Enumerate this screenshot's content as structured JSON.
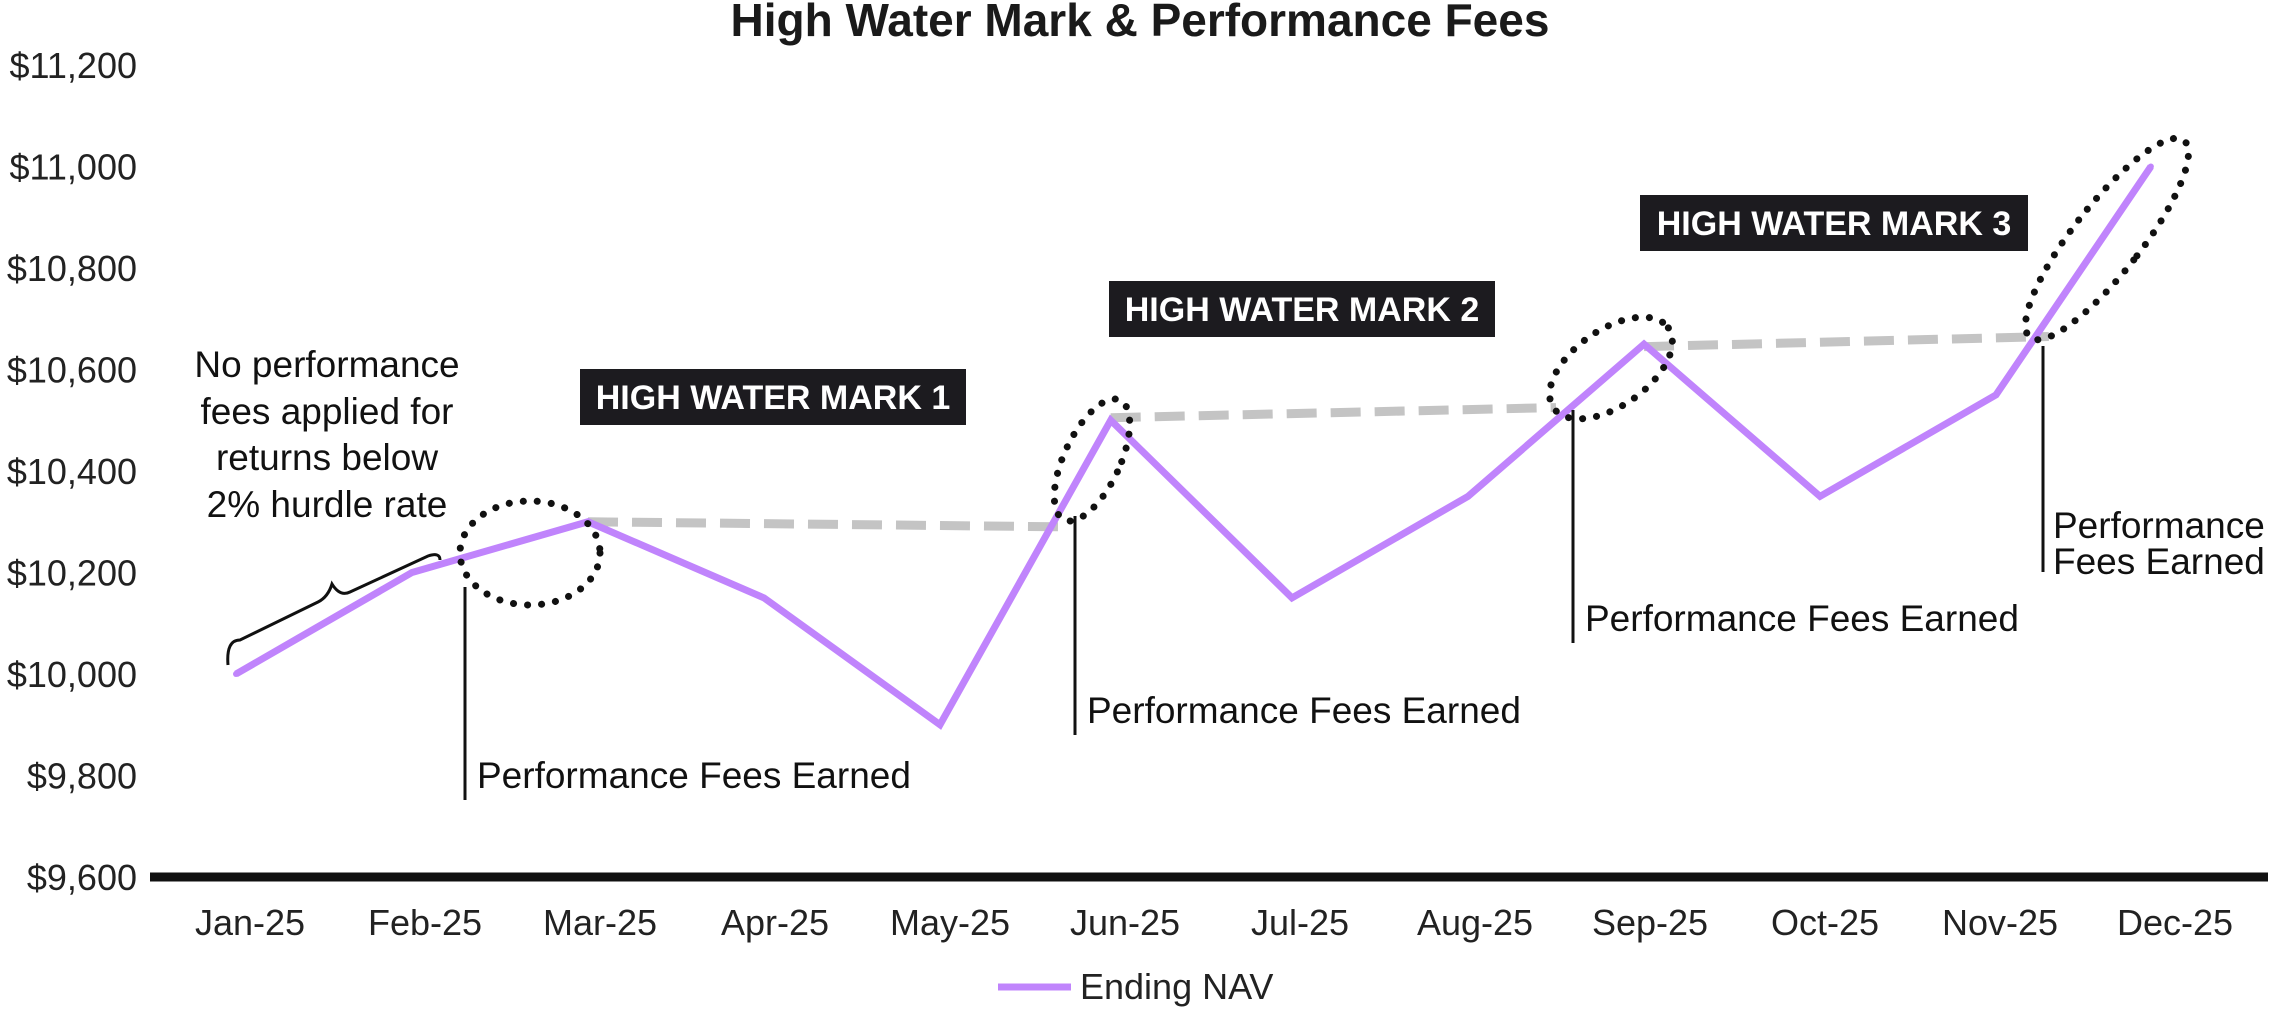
{
  "chart_data": {
    "type": "line",
    "title": "High Water Mark & Performance Fees",
    "categories": [
      "Jan-25",
      "Feb-25",
      "Mar-25",
      "Apr-25",
      "May-25",
      "Jun-25",
      "Jul-25",
      "Aug-25",
      "Sep-25",
      "Oct-25",
      "Nov-25",
      "Dec-25"
    ],
    "x_positions": [
      0,
      1,
      2,
      3,
      4,
      4.97,
      6,
      7,
      8,
      9,
      10,
      10.88
    ],
    "series": [
      {
        "name": "Ending NAV",
        "values": [
          10000,
          10200,
          10300,
          10150,
          9900,
          10500,
          10150,
          10350,
          10650,
          10350,
          10550,
          11000
        ],
        "color": "#c084fc"
      }
    ],
    "ylim": [
      9600,
      11200
    ],
    "yticks": [
      9600,
      9800,
      10000,
      10200,
      10400,
      10600,
      10800,
      11000,
      11200
    ],
    "ytick_labels": [
      "$9,600",
      "$9,800",
      "$10,000",
      "$10,200",
      "$10,400",
      "$10,600",
      "$10,800",
      "$11,000",
      "$11,200"
    ],
    "xlabel": "",
    "ylabel": "",
    "legend": {
      "position": "bottom-center",
      "entries": [
        "Ending NAV"
      ]
    },
    "high_water_marks": [
      {
        "label": "HIGH WATER MARK 1",
        "from_x": 2,
        "to_x": 4.7,
        "from_y": 10300,
        "to_y": 10290
      },
      {
        "label": "HIGH WATER MARK 2",
        "from_x": 4.97,
        "to_x": 7.5,
        "from_y": 10505,
        "to_y": 10525
      },
      {
        "label": "HIGH WATER MARK 3",
        "from_x": 8,
        "to_x": 10.3,
        "from_y": 10645,
        "to_y": 10665
      }
    ],
    "fee_annotations": [
      {
        "text": "Performance Fees Earned",
        "x": 1.25,
        "y": 10190
      },
      {
        "text": "Performance Fees Earned",
        "x": 4.65,
        "y": 10310
      },
      {
        "text": "Performance Fees Earned",
        "x": 7.5,
        "y": 10525
      },
      {
        "text": "Performance Fees Earned",
        "x": 10.2,
        "y": 10640
      }
    ],
    "hurdle_note": "No performance fees applied for returns below 2% hurdle rate",
    "hurdle_note_lines": [
      "No performance",
      "fees applied for",
      "returns below",
      "2% hurdle rate"
    ],
    "fee_label_lines": [
      "Performance",
      "Fees Earned"
    ],
    "colors": {
      "line": "#c084fc",
      "hwm": "#c4c4c4",
      "axis": "#111111",
      "label_bg": "#1c1b1f"
    }
  }
}
